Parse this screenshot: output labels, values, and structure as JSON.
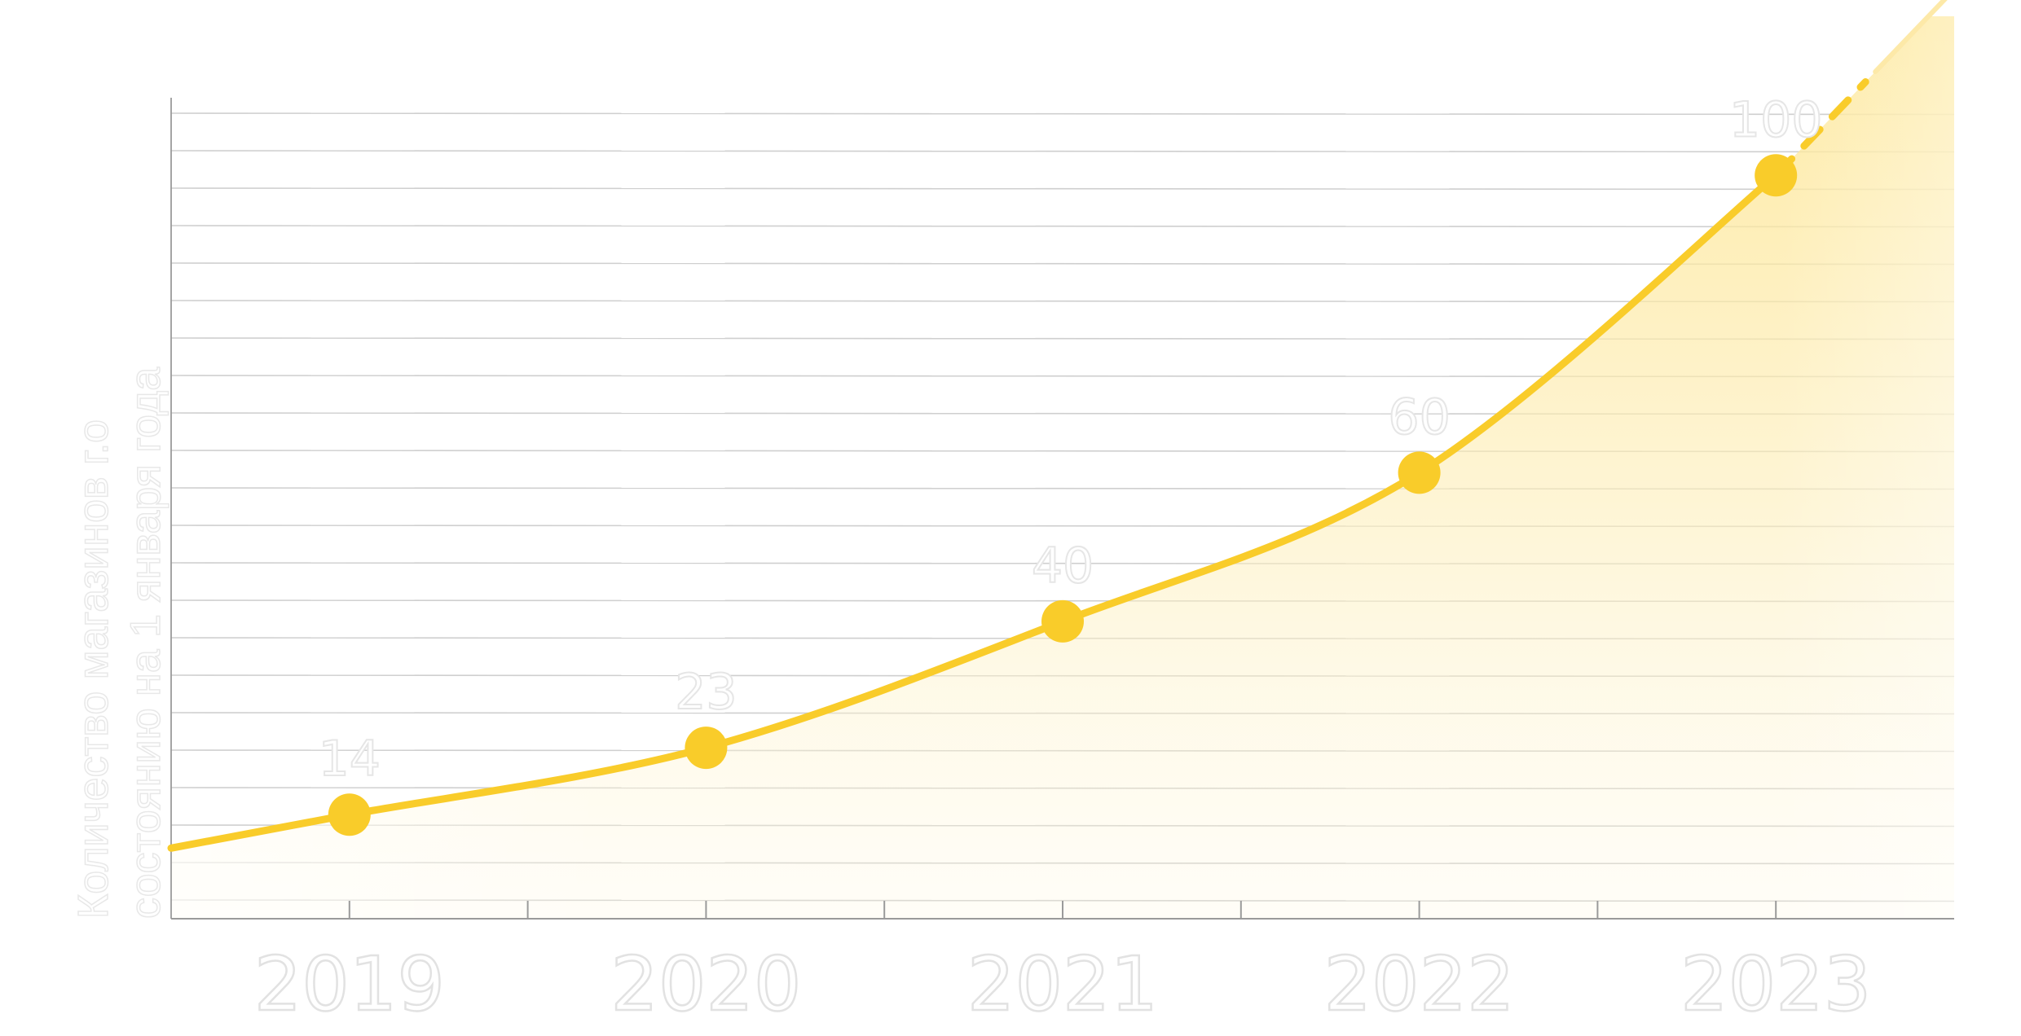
{
  "chart_data": {
    "type": "area",
    "title": "",
    "xlabel": "",
    "ylabel": "Количество магазинов г.о состоянию на 1 января года",
    "ylabel_lines": [
      "Количество магазинов г.о",
      "состоянию на 1 января года"
    ],
    "categories": [
      "2019",
      "2020",
      "2021",
      "2022",
      "2023"
    ],
    "series": [
      {
        "values": [
          14,
          23,
          40,
          60,
          100
        ]
      }
    ],
    "data_labels": [
      "14",
      "23",
      "40",
      "60",
      "100"
    ],
    "ylim": [
      0,
      110
    ],
    "grid": true,
    "legend": "none",
    "trend_extension": "dashed",
    "colors": {
      "line": "#f9cc2a",
      "marker": "#f9cc2a",
      "fill": "#fde9a0",
      "grid": "#cfcfcf",
      "axis": "#9a9a9a"
    }
  }
}
